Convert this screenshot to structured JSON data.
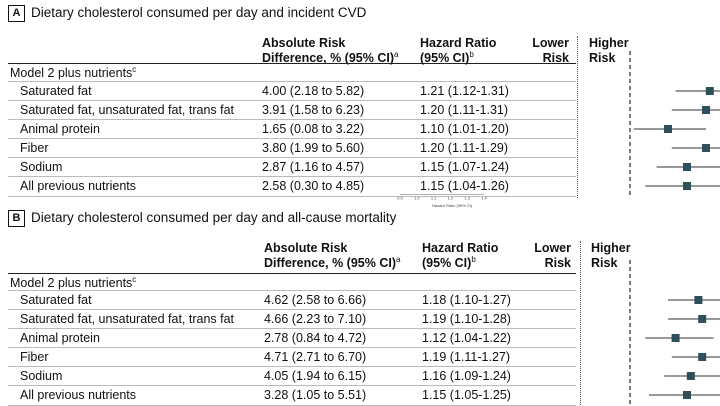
{
  "chart_data": [
    {
      "type": "forest",
      "panel": "A",
      "title": "Dietary cholesterol consumed per day and incident CVD",
      "columns": {
        "absolute_risk": "Absolute Risk\nDifference, % (95% CI)",
        "absolute_risk_footnote": "a",
        "hazard_ratio": "Hazard Ratio\n(95% CI)",
        "hazard_ratio_footnote": "b"
      },
      "direction_labels": {
        "lower": "Lower\nRisk",
        "higher": "Higher\nRisk"
      },
      "group_label": "Model 2 plus nutrients",
      "group_footnote": "c",
      "rows": [
        {
          "label": "Saturated fat",
          "ard": "4.00 (2.18 to 5.82)",
          "hr_text": "1.21 (1.12-1.31)",
          "hr": 1.21,
          "lo": 1.12,
          "hi": 1.31
        },
        {
          "label": "Saturated fat, unsaturated fat, trans fat",
          "ard": "3.91 (1.58 to 6.23)",
          "hr_text": "1.20 (1.11-1.31)",
          "hr": 1.2,
          "lo": 1.11,
          "hi": 1.31
        },
        {
          "label": "Animal protein",
          "ard": "1.65 (0.08 to 3.22)",
          "hr_text": "1.10 (1.01-1.20)",
          "hr": 1.1,
          "lo": 1.01,
          "hi": 1.2
        },
        {
          "label": "Fiber",
          "ard": "3.80 (1.99 to 5.60)",
          "hr_text": "1.20 (1.11-1.29)",
          "hr": 1.2,
          "lo": 1.11,
          "hi": 1.29
        },
        {
          "label": "Sodium",
          "ard": "2.87 (1.16 to 4.57)",
          "hr_text": "1.15 (1.07-1.24)",
          "hr": 1.15,
          "lo": 1.07,
          "hi": 1.24
        },
        {
          "label": "All previous nutrients",
          "ard": "2.58 (0.30 to 4.85)",
          "hr_text": "1.15 (1.04-1.26)",
          "hr": 1.15,
          "lo": 1.04,
          "hi": 1.26
        }
      ],
      "reference_line": 1.0,
      "xlim": [
        0.9,
        1.4
      ],
      "xticks": [
        "0.9",
        "1.0",
        "1.1",
        "1.2",
        "1.3",
        "1.4"
      ],
      "xlabel": "Hazard Ratio (95% CI)"
    },
    {
      "type": "forest",
      "panel": "B",
      "title": "Dietary cholesterol consumed per day and all-cause mortality",
      "columns": {
        "absolute_risk": "Absolute Risk\nDifference, % (95% CI)",
        "absolute_risk_footnote": "a",
        "hazard_ratio": "Hazard Ratio\n(95% CI)",
        "hazard_ratio_footnote": "b"
      },
      "direction_labels": {
        "lower": "Lower\nRisk",
        "higher": "Higher\nRisk"
      },
      "group_label": "Model 2 plus nutrients",
      "group_footnote": "c",
      "rows": [
        {
          "label": "Saturated fat",
          "ard": "4.62 (2.58 to 6.66)",
          "hr_text": "1.18 (1.10-1.27)",
          "hr": 1.18,
          "lo": 1.1,
          "hi": 1.27
        },
        {
          "label": "Saturated fat, unsaturated fat, trans fat",
          "ard": "4.66 (2.23 to 7.10)",
          "hr_text": "1.19 (1.10-1.28)",
          "hr": 1.19,
          "lo": 1.1,
          "hi": 1.28
        },
        {
          "label": "Animal protein",
          "ard": "2.78 (0.84 to 4.72)",
          "hr_text": "1.12 (1.04-1.22)",
          "hr": 1.12,
          "lo": 1.04,
          "hi": 1.22
        },
        {
          "label": "Fiber",
          "ard": "4.71 (2.71 to 6.70)",
          "hr_text": "1.19 (1.11-1.27)",
          "hr": 1.19,
          "lo": 1.11,
          "hi": 1.27
        },
        {
          "label": "Sodium",
          "ard": "4.05 (1.94 to 6.15)",
          "hr_text": "1.16 (1.09-1.24)",
          "hr": 1.16,
          "lo": 1.09,
          "hi": 1.24
        },
        {
          "label": "All previous nutrients",
          "ard": "3.28 (1.05 to 5.51)",
          "hr_text": "1.15 (1.05-1.25)",
          "hr": 1.15,
          "lo": 1.05,
          "hi": 1.25
        }
      ],
      "reference_line": 1.0,
      "xlim": [
        0.9,
        1.4
      ]
    }
  ],
  "colors": {
    "marker": "#2f4f5a",
    "line": "#333333",
    "text": "#111111"
  }
}
